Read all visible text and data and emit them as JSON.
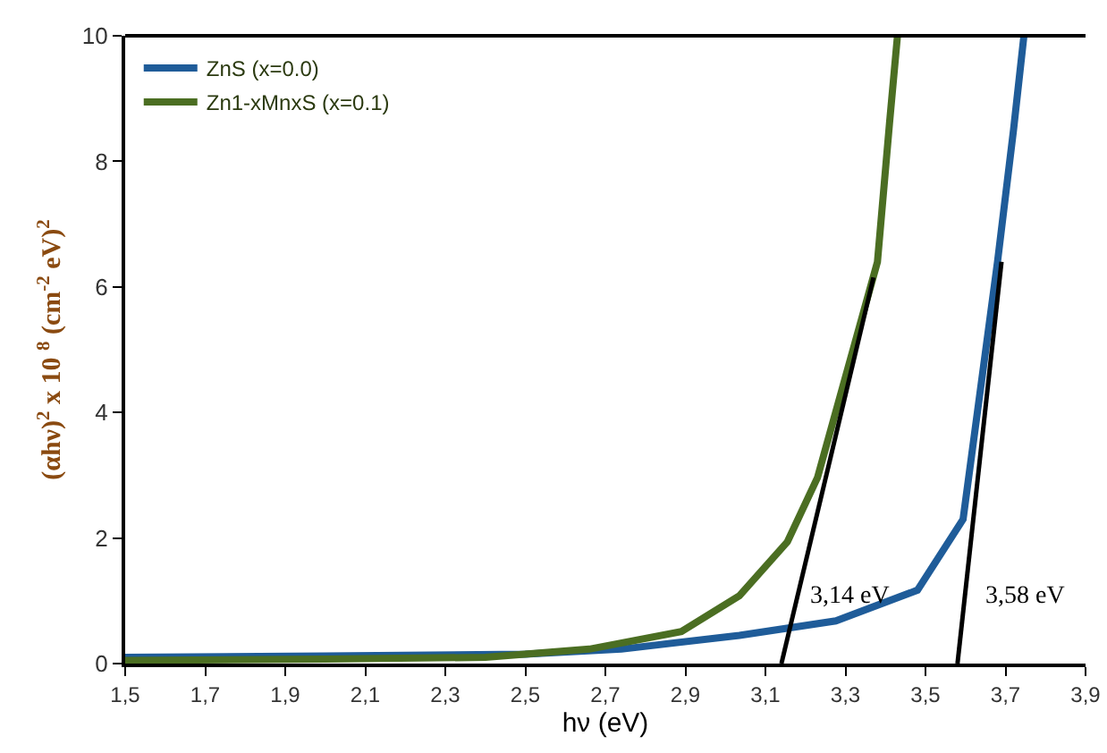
{
  "chart_data": {
    "type": "line",
    "xlabel": "hν (eV)",
    "ylabel": "(αhν)$^{2}$ x 10 $^{8}$ (cm$^{-2}$ eV)$^{2}$",
    "xlim": [
      1.5,
      3.9
    ],
    "ylim": [
      0,
      10
    ],
    "xticks": [
      {
        "value": 1.5,
        "label": "1,5"
      },
      {
        "value": 1.7,
        "label": "1,7"
      },
      {
        "value": 1.9,
        "label": "1,9"
      },
      {
        "value": 2.1,
        "label": "2,1"
      },
      {
        "value": 2.3,
        "label": "2,3"
      },
      {
        "value": 2.5,
        "label": "2,5"
      },
      {
        "value": 2.7,
        "label": "2,7"
      },
      {
        "value": 2.9,
        "label": "2,9"
      },
      {
        "value": 3.1,
        "label": "3,1"
      },
      {
        "value": 3.3,
        "label": "3,3"
      },
      {
        "value": 3.5,
        "label": "3,5"
      },
      {
        "value": 3.7,
        "label": "3,7"
      },
      {
        "value": 3.9,
        "label": "3,9"
      }
    ],
    "yticks": [
      0,
      2,
      4,
      6,
      8,
      10
    ],
    "grid": false,
    "legend": "top left",
    "marker": "none",
    "line_style": "solid",
    "series": [
      {
        "name": "ZnS (x=0.0)",
        "color": "#1f5c99",
        "x": [
          1.5,
          2.0,
          2.5,
          2.74,
          3.035,
          3.276,
          3.48,
          3.594,
          3.68,
          3.72,
          3.746
        ],
        "values": [
          0.1,
          0.12,
          0.15,
          0.23,
          0.45,
          0.68,
          1.17,
          2.3,
          6.4,
          8.5,
          10
        ]
      },
      {
        "name": "Zn1-xMnxS (x=0.1)",
        "color": "#4b6e22",
        "x": [
          1.5,
          2.0,
          2.4,
          2.66,
          2.89,
          3.035,
          3.155,
          3.23,
          3.38,
          3.41,
          3.43
        ],
        "values": [
          0.05,
          0.07,
          0.1,
          0.23,
          0.51,
          1.08,
          1.94,
          2.96,
          6.4,
          8.6,
          10
        ]
      },
      {
        "type": "line",
        "color": "#000000",
        "x": [
          3.14,
          3.37
        ],
        "values": [
          0,
          6.15
        ]
      },
      {
        "type": "line",
        "color": "#000000",
        "x": [
          3.58,
          3.69
        ],
        "values": [
          0,
          6.4
        ]
      }
    ],
    "annotations": [
      {
        "text": "3,14 eV",
        "x": 3.14,
        "y": 0
      },
      {
        "text": "3,58 eV",
        "x": 3.58,
        "y": 0
      }
    ]
  }
}
